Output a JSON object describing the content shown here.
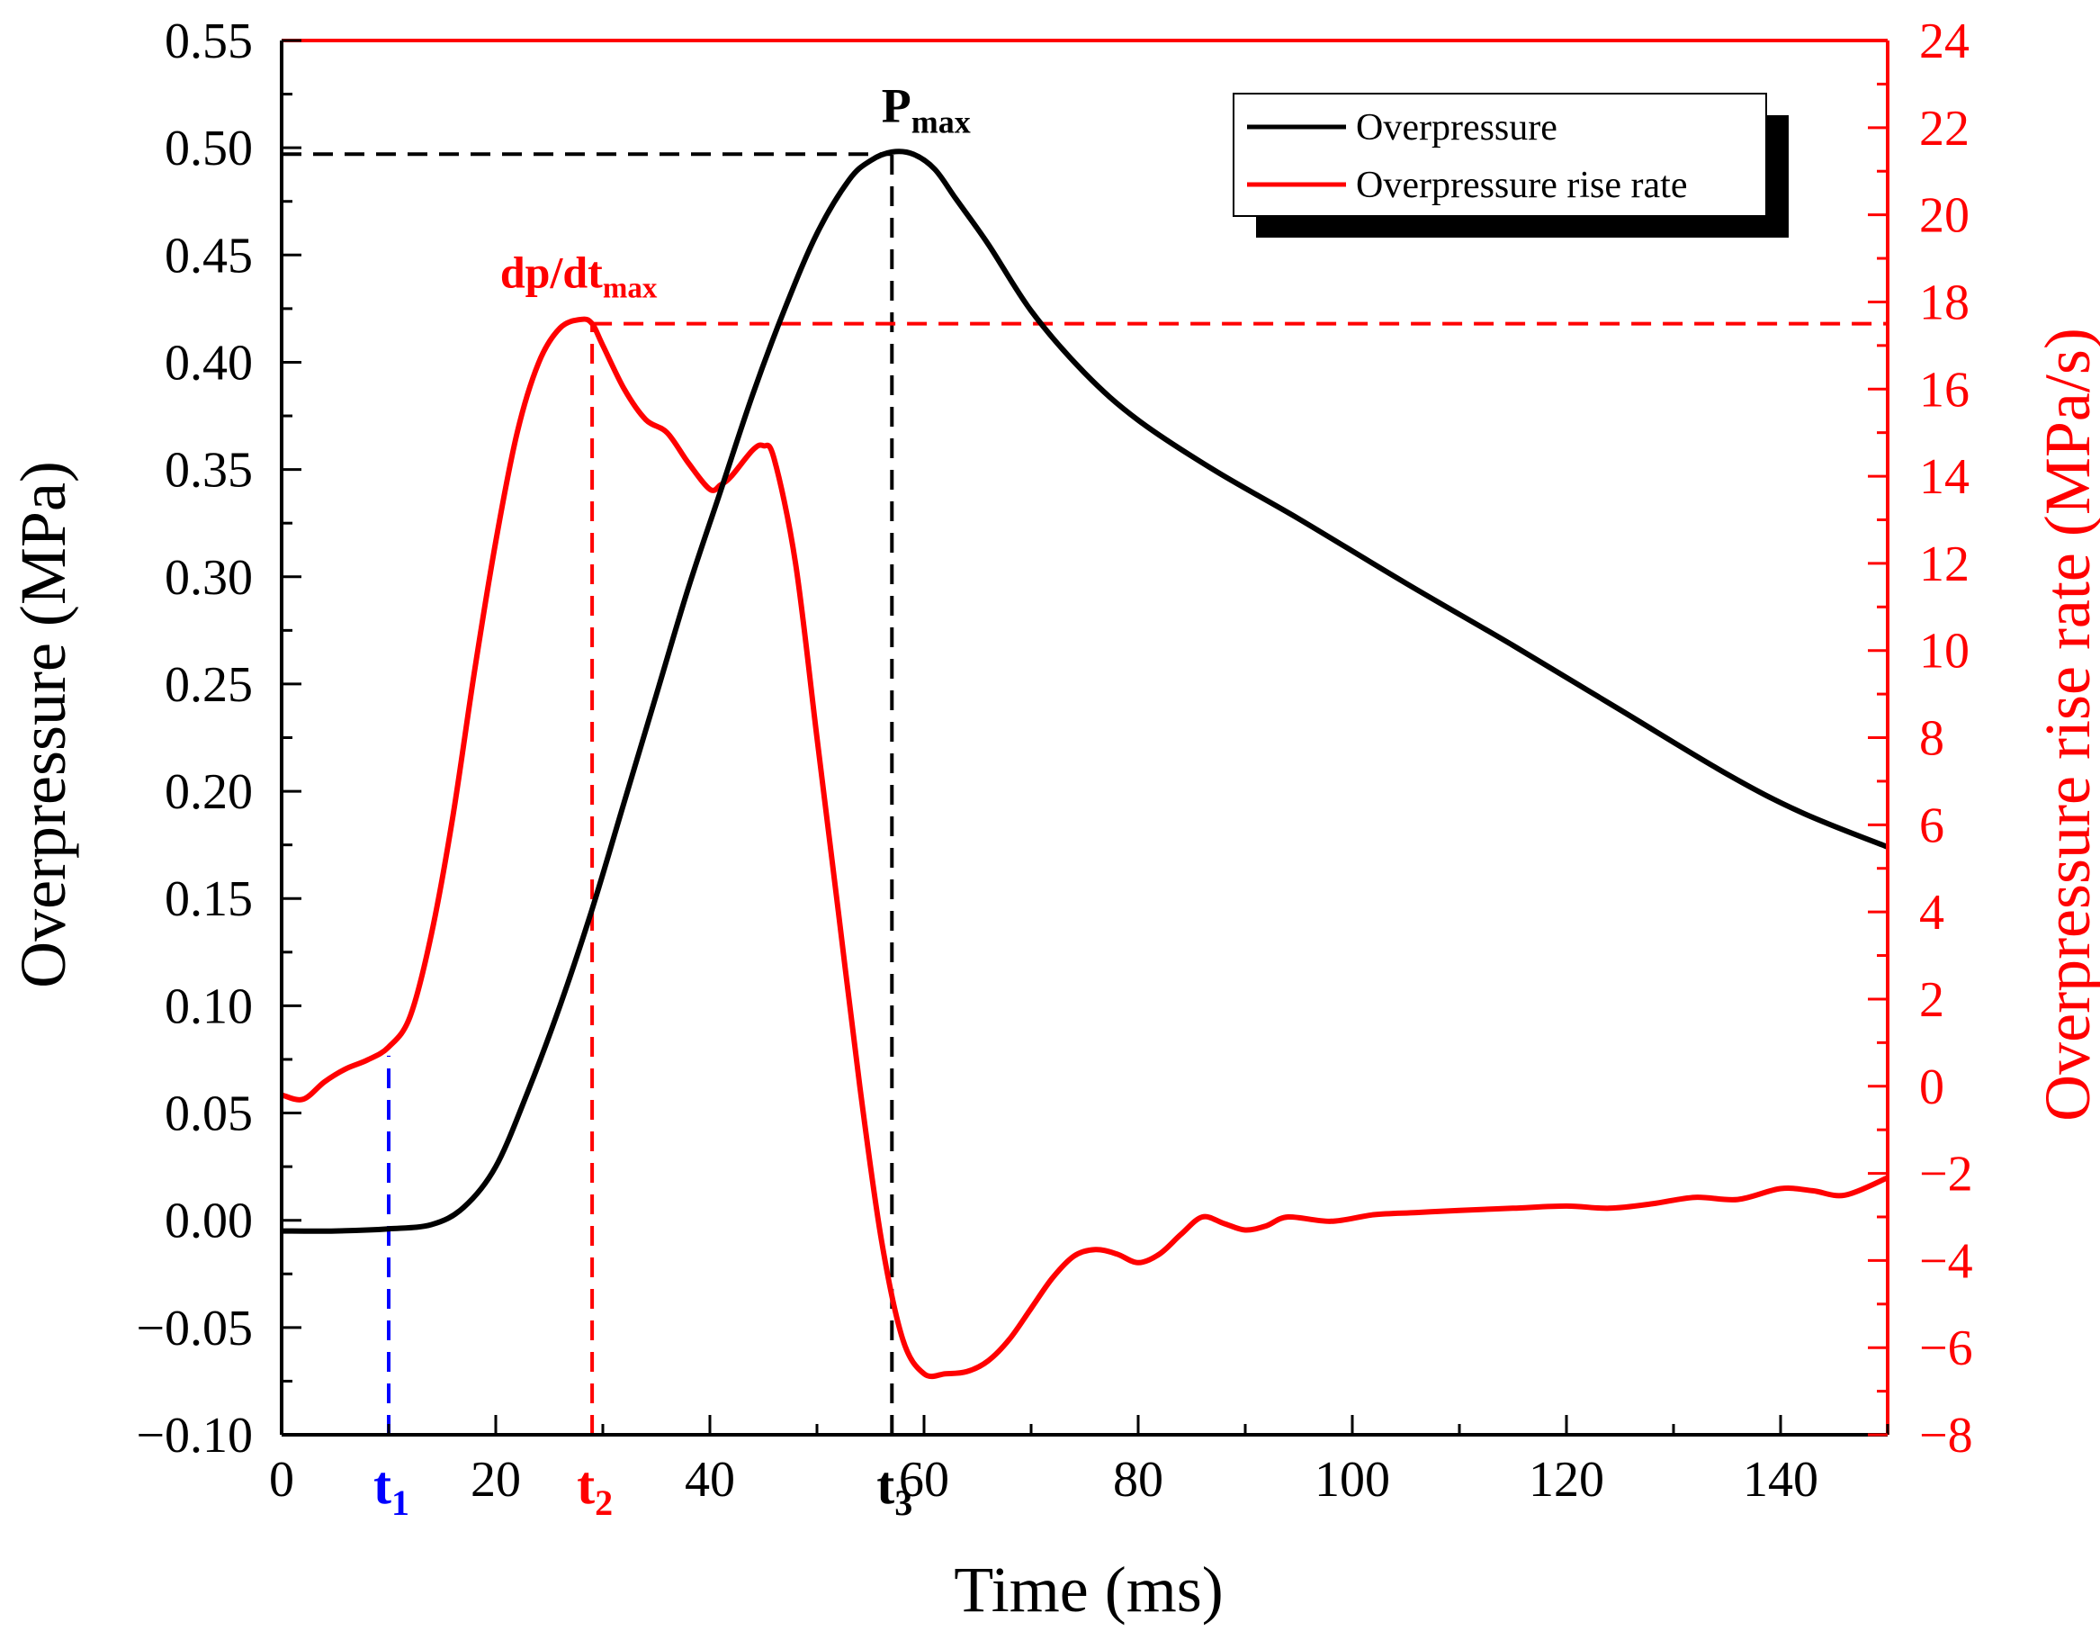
{
  "chart_data": {
    "type": "line",
    "title": "",
    "xlabel": "Time (ms)",
    "ylabel_left": "Overpressure (MPa)",
    "ylabel_right": "Overpressure rise rate (MPa/s)",
    "xlim": [
      0,
      150
    ],
    "ylim_left": [
      -0.1,
      0.55
    ],
    "ylim_right": [
      -8,
      24
    ],
    "x_ticks": [
      "0",
      "20",
      "40",
      "60",
      "80",
      "100",
      "120",
      "140"
    ],
    "y_left_ticks": [
      "−0.10",
      "−0.05",
      "0.00",
      "0.05",
      "0.10",
      "0.15",
      "0.20",
      "0.25",
      "0.30",
      "0.35",
      "0.40",
      "0.45",
      "0.50",
      "0.55"
    ],
    "y_right_ticks": [
      "−8",
      "−6",
      "−4",
      "−2",
      "0",
      "2",
      "4",
      "6",
      "8",
      "10",
      "12",
      "14",
      "16",
      "18",
      "20",
      "22",
      "24"
    ],
    "legend_position": "top-right",
    "series": [
      {
        "name": "Overpressure",
        "axis": "left",
        "color": "#000000",
        "x": [
          0,
          5,
          10,
          14,
          17,
          20,
          23,
          26,
          29,
          32,
          35,
          38,
          41,
          44,
          47,
          50,
          53,
          55,
          57,
          59,
          61,
          63,
          66,
          70,
          75,
          80,
          87,
          95,
          105,
          115,
          125,
          135,
          142,
          150
        ],
        "y": [
          -0.005,
          -0.005,
          -0.004,
          -0.002,
          0.006,
          0.025,
          0.06,
          0.1,
          0.145,
          0.195,
          0.245,
          0.295,
          0.34,
          0.385,
          0.425,
          0.46,
          0.485,
          0.494,
          0.498,
          0.497,
          0.49,
          0.476,
          0.455,
          0.424,
          0.395,
          0.373,
          0.35,
          0.327,
          0.297,
          0.268,
          0.238,
          0.208,
          0.19,
          0.174
        ]
      },
      {
        "name": "Overpressure rise rate",
        "axis": "right",
        "color": "#ff0000",
        "x": [
          0,
          2,
          4,
          6,
          8,
          10,
          12,
          14,
          16,
          18,
          20,
          22,
          24,
          26,
          28,
          29,
          30,
          32,
          34,
          36,
          38,
          40,
          41,
          42,
          44,
          45,
          46,
          48,
          50,
          52,
          54,
          56,
          58,
          60,
          62,
          64,
          66,
          68,
          70,
          72,
          74,
          76,
          78,
          80,
          82,
          84,
          86,
          88,
          90,
          92,
          94,
          98,
          102,
          106,
          110,
          115,
          120,
          124,
          128,
          132,
          136,
          140,
          143,
          146,
          150
        ],
        "y": [
          -0.2,
          -0.3,
          0.1,
          0.4,
          0.6,
          0.9,
          1.6,
          3.5,
          6.2,
          9.5,
          12.5,
          15.0,
          16.6,
          17.4,
          17.6,
          17.5,
          17.0,
          16.0,
          15.3,
          15.0,
          14.3,
          13.7,
          13.8,
          14.0,
          14.6,
          14.7,
          14.4,
          12.0,
          8.0,
          4.0,
          0.0,
          -3.5,
          -5.8,
          -6.6,
          -6.6,
          -6.55,
          -6.3,
          -5.8,
          -5.1,
          -4.4,
          -3.9,
          -3.75,
          -3.85,
          -4.05,
          -3.85,
          -3.4,
          -3.0,
          -3.15,
          -3.3,
          -3.2,
          -3.0,
          -3.1,
          -2.95,
          -2.9,
          -2.85,
          -2.8,
          -2.75,
          -2.8,
          -2.7,
          -2.55,
          -2.6,
          -2.35,
          -2.4,
          -2.5,
          -2.1
        ]
      }
    ],
    "annotations": [
      {
        "id": "p-max",
        "main": "P",
        "sub": "max",
        "color": "#000000"
      },
      {
        "id": "dpdt-max",
        "main": "dp/dt",
        "sub": "max",
        "color": "#ff0000"
      },
      {
        "id": "t1",
        "main": "t",
        "sub": "1",
        "color": "#0000ff",
        "x": 10
      },
      {
        "id": "t2",
        "main": "t",
        "sub": "2",
        "color": "#ff0000",
        "x": 29
      },
      {
        "id": "t3",
        "main": "t",
        "sub": "3",
        "color": "#000000",
        "x": 57
      }
    ],
    "reference_lines": [
      {
        "name": "pmax-horizontal-line",
        "axis": "left",
        "orientation": "horizontal",
        "y": 0.497,
        "from_x": 0,
        "to_x": 57,
        "color": "#000000"
      },
      {
        "name": "t3-vertical-line",
        "axis": "left",
        "orientation": "vertical",
        "x": 57,
        "from_y": -0.1,
        "to_y": 0.497,
        "color": "#000000"
      },
      {
        "name": "dpdt-max-horizontal-line",
        "axis": "right",
        "orientation": "horizontal",
        "y": 17.5,
        "from_x": 29,
        "to_x": 150,
        "color": "#ff0000"
      },
      {
        "name": "t2-vertical-line",
        "axis": "right",
        "orientation": "vertical",
        "x": 29,
        "from_y": -8,
        "to_y": 17.5,
        "color": "#ff0000"
      },
      {
        "name": "t1-vertical-line",
        "axis": "right",
        "orientation": "vertical",
        "x": 10,
        "from_y": -8,
        "to_y": 0.7,
        "color": "#0000ff"
      }
    ]
  }
}
